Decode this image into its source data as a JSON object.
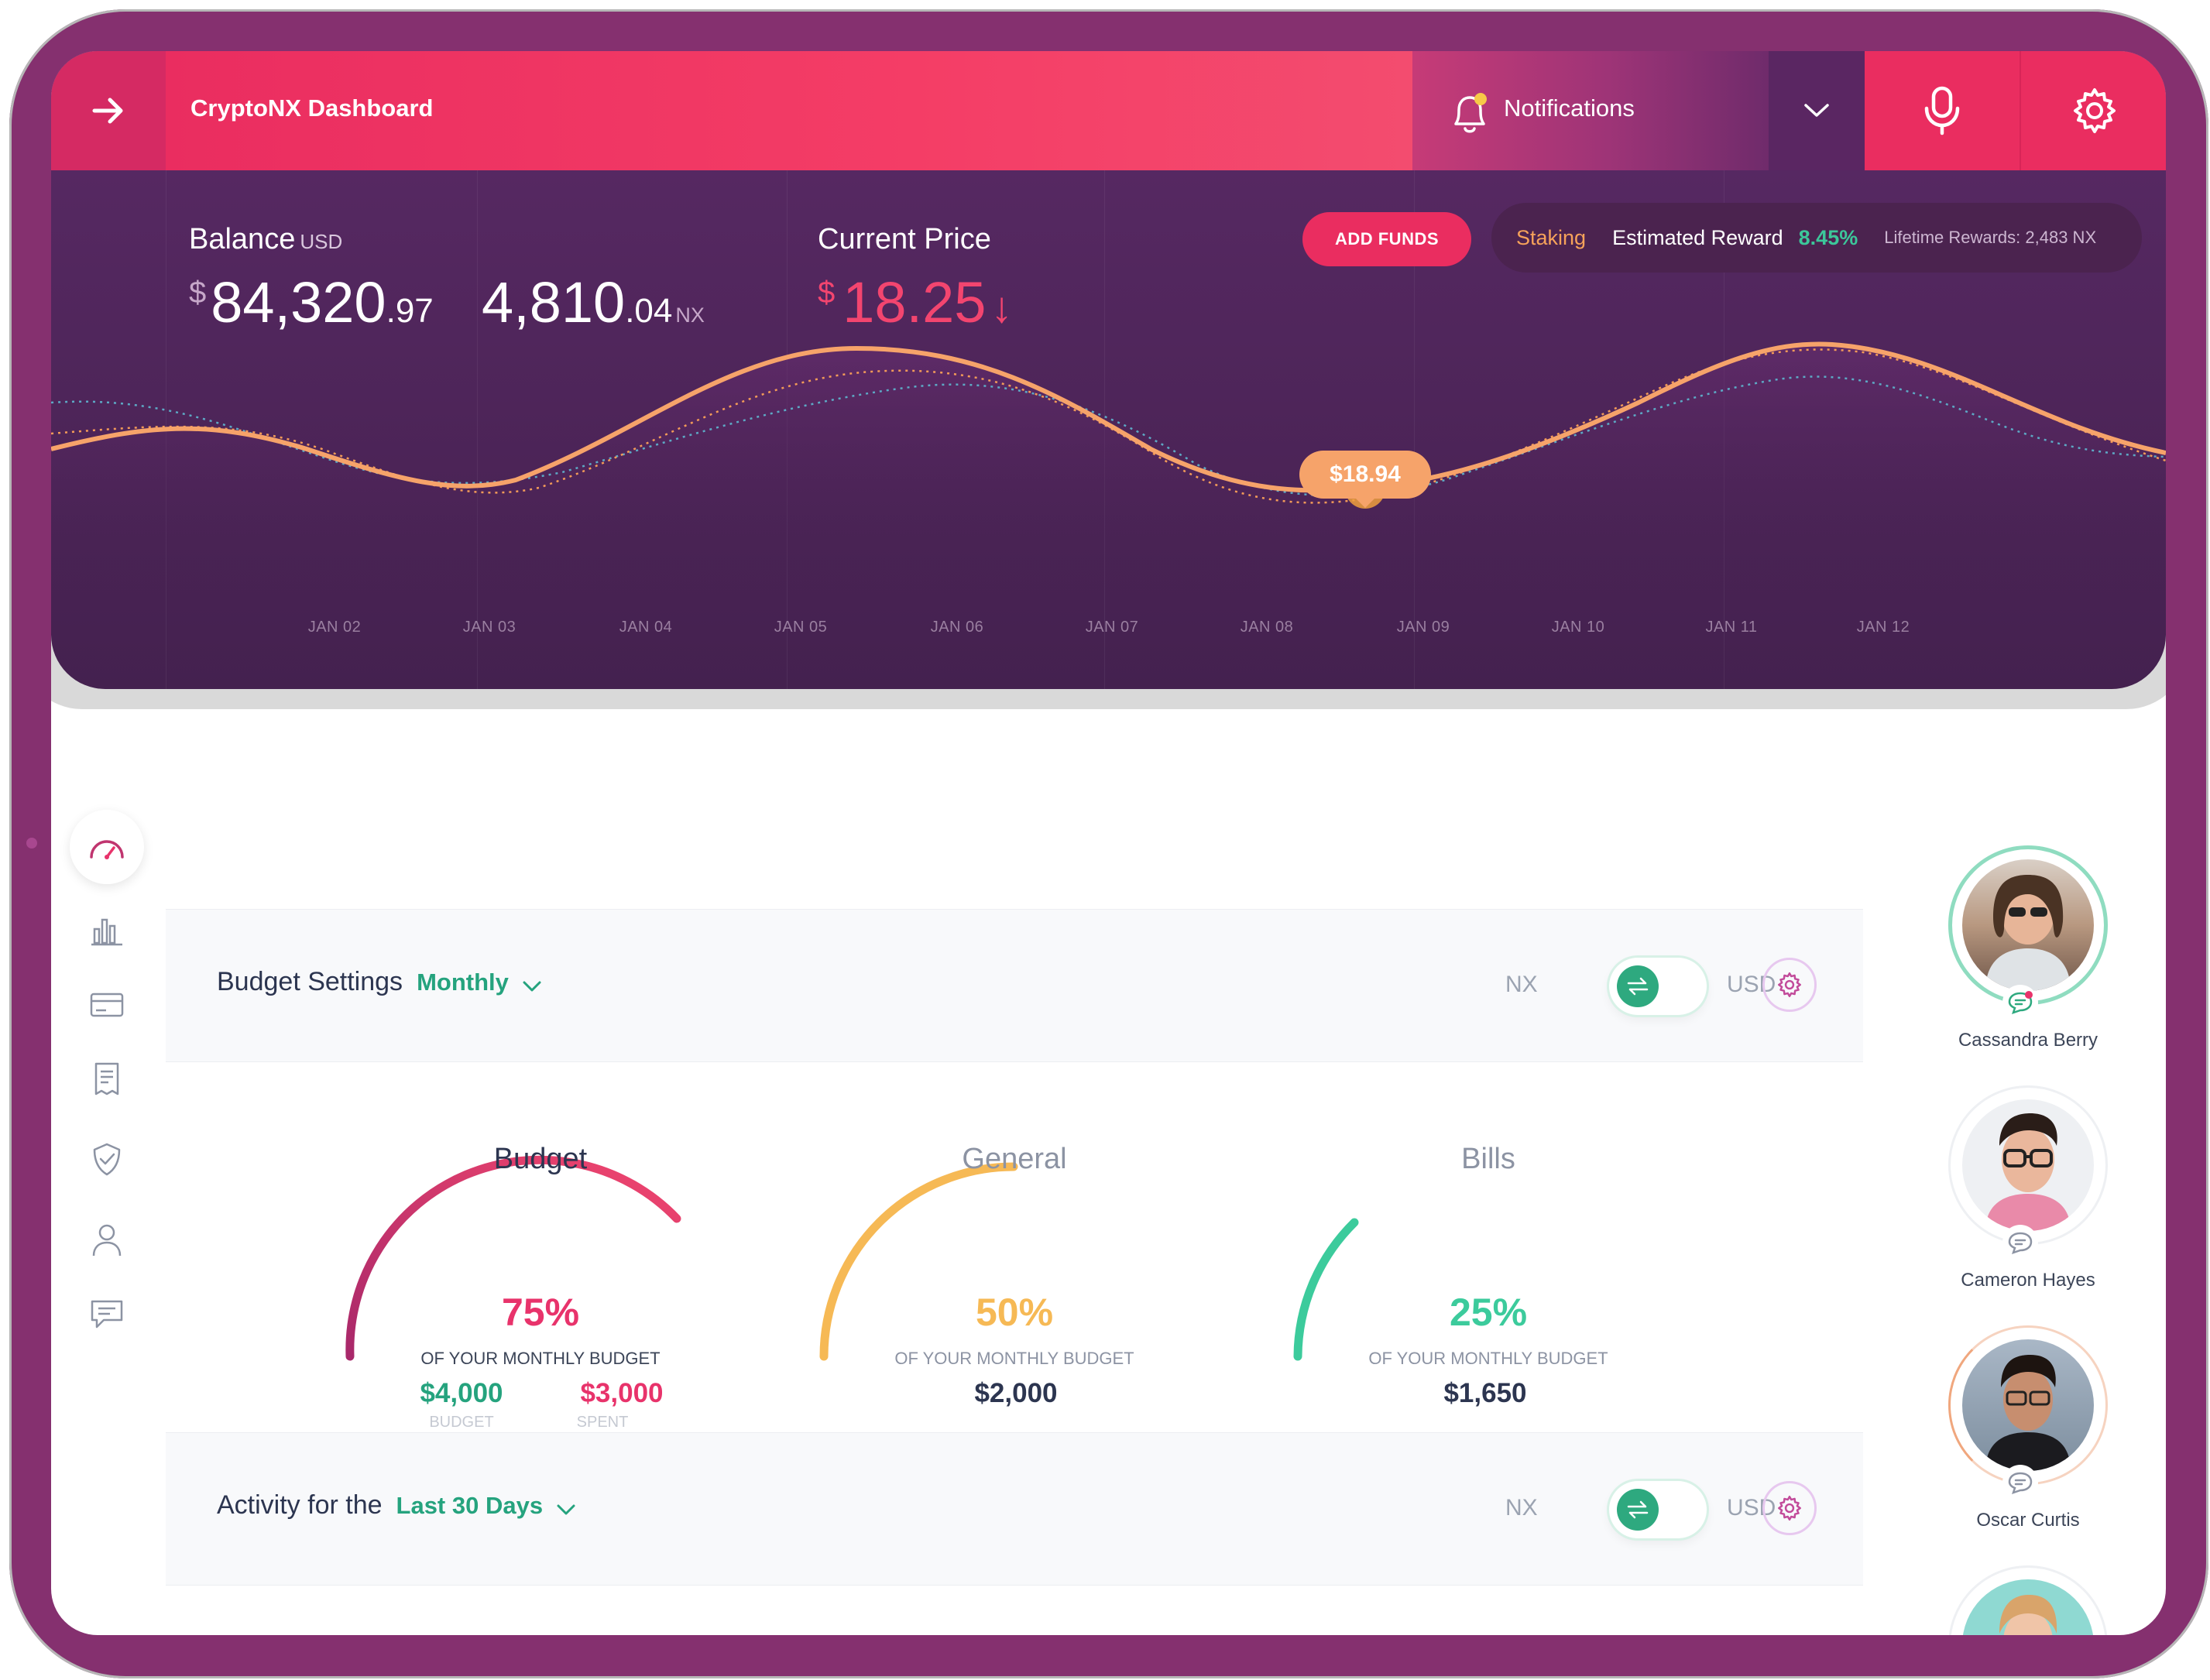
{
  "header": {
    "app_title": "CryptoNX Dashboard",
    "notifications_label": "Notifications",
    "back_icon": "arrow-right-icon",
    "mic_icon": "microphone-icon",
    "settings_icon": "gear-icon"
  },
  "balance": {
    "label": "Balance",
    "currency": "USD",
    "usd_symbol": "$",
    "usd_whole": "84,320",
    "usd_cents": ".97",
    "nx_whole": "4,810",
    "nx_cents": ".04",
    "nx_unit": "NX"
  },
  "price": {
    "label": "Current Price",
    "symbol": "$",
    "value": "18.25",
    "trend_arrow": "↓"
  },
  "actions": {
    "add_funds": "ADD FUNDS"
  },
  "staking": {
    "label": "Staking",
    "reward_label": "Estimated Reward",
    "reward_pct": "8.45%",
    "lifetime": "Lifetime Rewards: 2,483 NX"
  },
  "chart_data": {
    "type": "line",
    "categories": [
      "JAN 02",
      "JAN 03",
      "JAN 04",
      "JAN 05",
      "JAN 06",
      "JAN 07",
      "JAN 08",
      "JAN 09",
      "JAN 10",
      "JAN 11",
      "JAN 12"
    ],
    "tooltip": {
      "category": "JAN 09",
      "value": "$18.94"
    },
    "grid": false
  },
  "sidebar": {
    "items": [
      "speedometer-icon",
      "bar-chart-icon",
      "credit-card-icon",
      "receipt-icon",
      "shield-check-icon",
      "user-icon",
      "chat-icon"
    ]
  },
  "budget_panel": {
    "title": "Budget Settings",
    "period": "Monthly",
    "cur_left": "NX",
    "cur_right": "USD"
  },
  "gauges": [
    {
      "title": "Budget",
      "pct": "75%",
      "sub": "OF YOUR MONTHLY BUDGET",
      "amount1": "$4,000",
      "cap1": "BUDGET",
      "amount2": "$3,000",
      "cap2": "SPENT",
      "color": "#e8336b",
      "fraction": 0.75
    },
    {
      "title": "General",
      "pct": "50%",
      "sub": "OF YOUR MONTHLY BUDGET",
      "amount1": "$2,000",
      "color": "#f6b955",
      "fraction": 0.5
    },
    {
      "title": "Bills",
      "pct": "25%",
      "sub": "OF YOUR MONTHLY BUDGET",
      "amount1": "$1,650",
      "color": "#3ccb9c",
      "fraction": 0.25
    }
  ],
  "activity_panel": {
    "title": "Activity for the",
    "period": "Last 30 Days",
    "cur_left": "NX",
    "cur_right": "USD"
  },
  "contacts": [
    {
      "name": "Cassandra Berry"
    },
    {
      "name": "Cameron Hayes"
    },
    {
      "name": "Oscar Curtis"
    }
  ],
  "colors": {
    "brand": "#ea2d60",
    "accent_green": "#25a37e",
    "device": "#85306f",
    "hero": "#4a2253"
  }
}
